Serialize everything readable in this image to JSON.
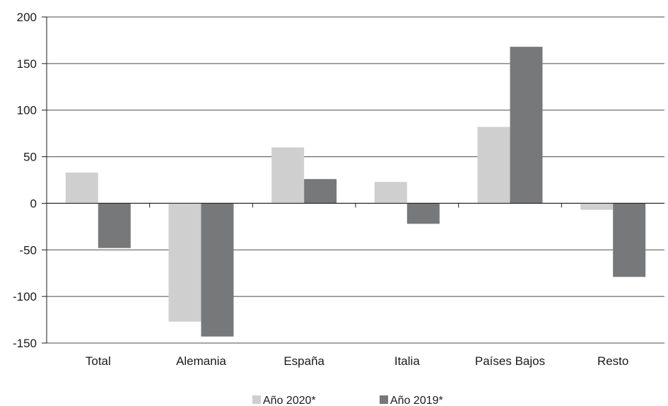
{
  "chart_data": {
    "type": "bar",
    "categories": [
      "Total",
      "Alemania",
      "España",
      "Italia",
      "Países Bajos",
      "Resto"
    ],
    "series": [
      {
        "name": "Año 2020*",
        "color": "#cfcfcf",
        "values": [
          33,
          -127,
          60,
          23,
          82,
          -7
        ]
      },
      {
        "name": "Año 2019*",
        "color": "#76787a",
        "values": [
          -48,
          -143,
          26,
          -22,
          168,
          -79
        ]
      }
    ],
    "yticks": [
      200,
      150,
      100,
      50,
      0,
      -50,
      -100,
      -150
    ],
    "ylim": [
      -150,
      200
    ],
    "grid": true,
    "legend": "bottom-center",
    "title": "",
    "xlabel": "",
    "ylabel": ""
  }
}
